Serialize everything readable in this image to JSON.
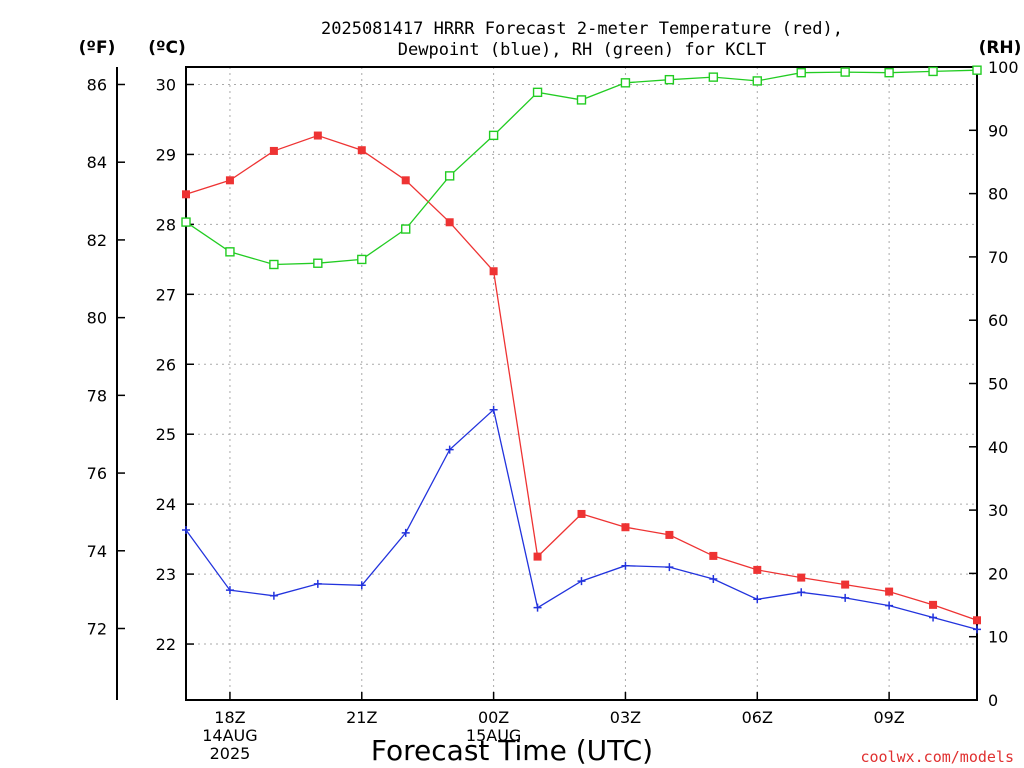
{
  "chart_data": {
    "type": "line",
    "title_line1": "2025081417 HRRR Forecast 2-meter Temperature (red),",
    "title_line2": "Dewpoint (blue), RH (green) for KCLT",
    "xlabel": "Forecast Time (UTC)",
    "credit": "coolwx.com/models",
    "units": {
      "fahrenheit": "(ºF)",
      "celsius": "(ºC)",
      "rh": "(RH)"
    },
    "x_hours": [
      17,
      18,
      19,
      20,
      21,
      22,
      23,
      24,
      25,
      26,
      27,
      28,
      29,
      30,
      31,
      32,
      33,
      34,
      35,
      36
    ],
    "x_ticks": [
      {
        "hour": 18,
        "lines": [
          "18Z",
          "14AUG",
          "2025"
        ]
      },
      {
        "hour": 21,
        "lines": [
          "21Z"
        ]
      },
      {
        "hour": 24,
        "lines": [
          "00Z",
          "15AUG"
        ]
      },
      {
        "hour": 27,
        "lines": [
          "03Z"
        ]
      },
      {
        "hour": 30,
        "lines": [
          "06Z"
        ]
      },
      {
        "hour": 33,
        "lines": [
          "09Z"
        ]
      }
    ],
    "xlim": [
      17,
      35
    ],
    "celsius_range": [
      21.2,
      30.25
    ],
    "celsius_ticks": [
      22,
      23,
      24,
      25,
      26,
      27,
      28,
      29,
      30
    ],
    "fahrenheit_ticks": [
      72,
      74,
      76,
      78,
      80,
      82,
      84,
      86
    ],
    "rh_range": [
      0,
      100
    ],
    "rh_ticks": [
      0,
      10,
      20,
      30,
      40,
      50,
      60,
      70,
      80,
      90,
      100
    ],
    "grid": true,
    "series": [
      {
        "name": "Temperature",
        "axis": "celsius",
        "color": "#ee3333",
        "marker": "filled-square",
        "values": [
          28.43,
          28.63,
          29.05,
          29.27,
          29.06,
          28.63,
          28.03,
          27.33,
          23.25,
          23.86,
          23.67,
          23.56,
          23.26,
          23.06,
          22.95,
          22.85,
          22.75,
          22.56,
          22.34,
          22.2
        ]
      },
      {
        "name": "Dewpoint",
        "axis": "celsius",
        "color": "#2233dd",
        "marker": "plus",
        "values": [
          23.63,
          22.77,
          22.69,
          22.86,
          22.84,
          23.59,
          24.78,
          25.35,
          22.52,
          22.9,
          23.12,
          23.1,
          22.93,
          22.64,
          22.74,
          22.66,
          22.55,
          22.38,
          22.21,
          22.0
        ]
      },
      {
        "name": "RH",
        "axis": "rh",
        "color": "#22cc22",
        "marker": "open-square",
        "values": [
          75.5,
          70.8,
          68.8,
          69.0,
          69.6,
          74.4,
          82.8,
          89.2,
          96.0,
          94.8,
          97.5,
          98.0,
          98.4,
          97.8,
          99.1,
          99.2,
          99.1,
          99.3,
          99.5,
          99.6
        ]
      }
    ]
  }
}
